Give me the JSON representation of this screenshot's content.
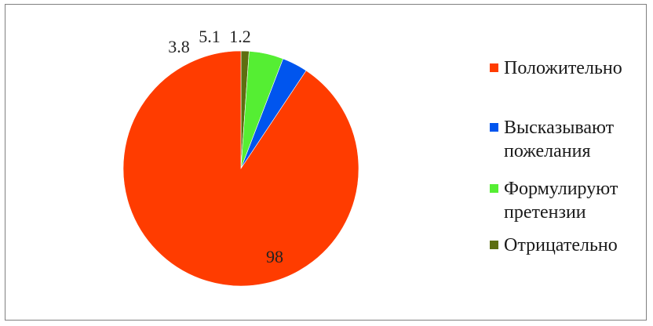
{
  "chart_data": {
    "type": "pie",
    "title": "",
    "slices": [
      {
        "label": "Положительно",
        "value": 98,
        "data_label": "98",
        "color": "#ff3c00"
      },
      {
        "label": "Высказывают\nпожелания",
        "value": 3.8,
        "data_label": "3.8",
        "color": "#0055ee"
      },
      {
        "label": "Формулируют\nпретензии",
        "value": 5.1,
        "data_label": "5.1",
        "color": "#55ee33"
      },
      {
        "label": "Отрицательно",
        "value": 1.2,
        "data_label": "1.2",
        "color": "#5d6e10"
      }
    ],
    "legend_position": "right"
  }
}
